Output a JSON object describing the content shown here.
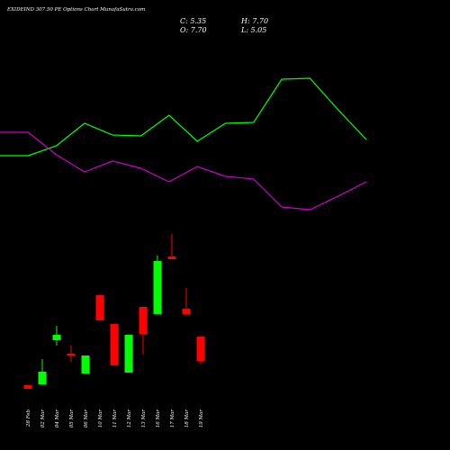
{
  "chart_data": [
    {
      "type": "candlestick",
      "title": "EXIDEIND 307.50 PE Options Chart MunafaSutra.com",
      "ohlc_labels": [
        "C: 5.35",
        "O: 7.70",
        "H: 7.70",
        "L: 5.05"
      ],
      "categories": [
        "28 Feb",
        "02 Mar",
        "04 Mar",
        "05 Mar",
        "06 Mar",
        "10 Mar",
        "11 Mar",
        "12 Mar",
        "13 Mar",
        "16 Mar",
        "17 Mar",
        "18 Mar",
        "19 Mar"
      ],
      "open": [
        3.0,
        3.09,
        7.35,
        6.05,
        4.13,
        11.7,
        8.92,
        4.22,
        10.57,
        9.88,
        15.44,
        10.4,
        7.7
      ],
      "high": [
        3.0,
        5.53,
        8.74,
        6.83,
        5.87,
        11.7,
        8.92,
        7.87,
        10.57,
        15.53,
        17.62,
        12.4,
        7.7
      ],
      "low": [
        2.65,
        3.09,
        6.83,
        5.26,
        4.13,
        9.27,
        4.92,
        4.22,
        5.96,
        9.88,
        15.18,
        9.88,
        5.05
      ],
      "close": [
        2.65,
        4.31,
        7.87,
        5.87,
        5.87,
        9.27,
        4.92,
        7.87,
        7.96,
        15.01,
        15.18,
        9.88,
        5.35
      ],
      "up_color": "#00ff00",
      "down_color": "#ff0000"
    },
    {
      "type": "line",
      "categories": [
        null,
        null,
        null,
        null,
        null,
        null,
        null,
        null,
        null,
        null,
        null,
        null,
        null,
        null
      ],
      "series": [
        {
          "color": "#00ff00",
          "values": [
            25.19,
            25.19,
            26.14,
            28.32,
            27.19,
            27.1,
            29.1,
            26.58,
            28.32,
            28.41,
            32.58,
            32.67,
            29.62,
            26.75
          ]
        },
        {
          "color": "#cc00cc",
          "values": [
            27.45,
            27.45,
            25.27,
            23.62,
            24.67,
            23.97,
            22.66,
            24.14,
            23.19,
            22.93,
            20.23,
            19.97,
            21.28,
            22.66
          ]
        }
      ]
    }
  ]
}
